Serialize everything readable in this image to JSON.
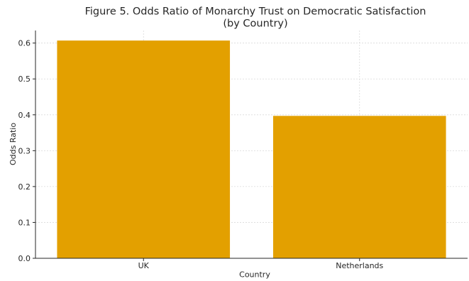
{
  "chart_data": {
    "type": "bar",
    "title_lines": [
      "Figure 5. Odds Ratio of Monarchy Trust on Democratic Satisfaction",
      "(by Country)"
    ],
    "categories": [
      "UK",
      "Netherlands"
    ],
    "values": [
      0.607,
      0.397
    ],
    "xlabel": "Country",
    "ylabel": "Odds Ratio",
    "ylim": [
      0,
      0.635
    ],
    "yticks": [
      "0.0",
      "0.1",
      "0.2",
      "0.3",
      "0.4",
      "0.5",
      "0.6"
    ],
    "grid": true,
    "bar_color": "#E3A000"
  }
}
